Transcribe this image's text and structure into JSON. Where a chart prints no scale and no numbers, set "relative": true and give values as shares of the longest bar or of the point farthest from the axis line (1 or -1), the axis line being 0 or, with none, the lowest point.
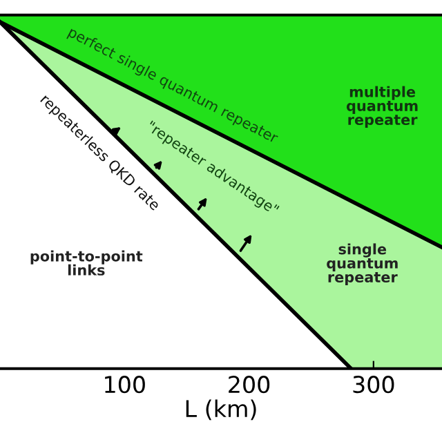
{
  "chart_data": {
    "type": "area",
    "relative": true,
    "xlabel": "L (km)",
    "xlim": [
      0,
      355
    ],
    "xticks": [
      100,
      200,
      300
    ],
    "series": [
      {
        "color": "#aaf59d",
        "x": [
          0,
          355
        ],
        "values": [
          1,
          0.35
        ]
      },
      {
        "color": "#ffffff",
        "x": [
          0,
          282
        ],
        "values": [
          1,
          0
        ]
      }
    ],
    "bands": [
      {
        "axis": "y",
        "from": 0.35,
        "to": 1.02,
        "color": "#22e01a"
      }
    ],
    "annotations": [
      "perfect single quantum repeater",
      "repeaterless QKD rate",
      "\"repeater advantage\"",
      "multiple\nquantum\nrepeater",
      "single\nquantum\nrepeater",
      "point-to-point\nlinks"
    ]
  }
}
